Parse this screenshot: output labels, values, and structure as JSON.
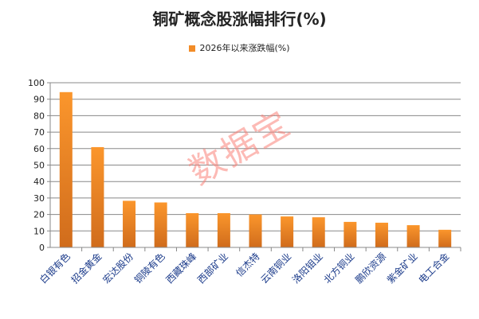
{
  "chart_data": {
    "type": "bar",
    "title": "铜矿概念股涨幅排行(%)",
    "legend": "2026年以来涨跌幅(%)",
    "legend_position": "top",
    "categories": [
      "白银有色",
      "招金黄金",
      "宏达股份",
      "铜陵有色",
      "西藏珠峰",
      "西部矿业",
      "信杰特",
      "云南铜业",
      "洛阳钼业",
      "北方铜业",
      "鹏欣资源",
      "紫金矿业",
      "电工合金"
    ],
    "series": [
      {
        "name": "2026年以来涨跌幅(%)",
        "values": [
          94.3,
          60.9,
          28.3,
          27.3,
          20.8,
          20.8,
          20,
          18.8,
          18.3,
          15.5,
          15,
          13.5,
          10.7
        ]
      }
    ],
    "ylim": [
      0,
      100
    ],
    "yticks": [
      0,
      10,
      20,
      30,
      40,
      50,
      60,
      70,
      80,
      90,
      100
    ],
    "grid": true,
    "bar_color": "#f28c28"
  },
  "watermark": "数据宝"
}
